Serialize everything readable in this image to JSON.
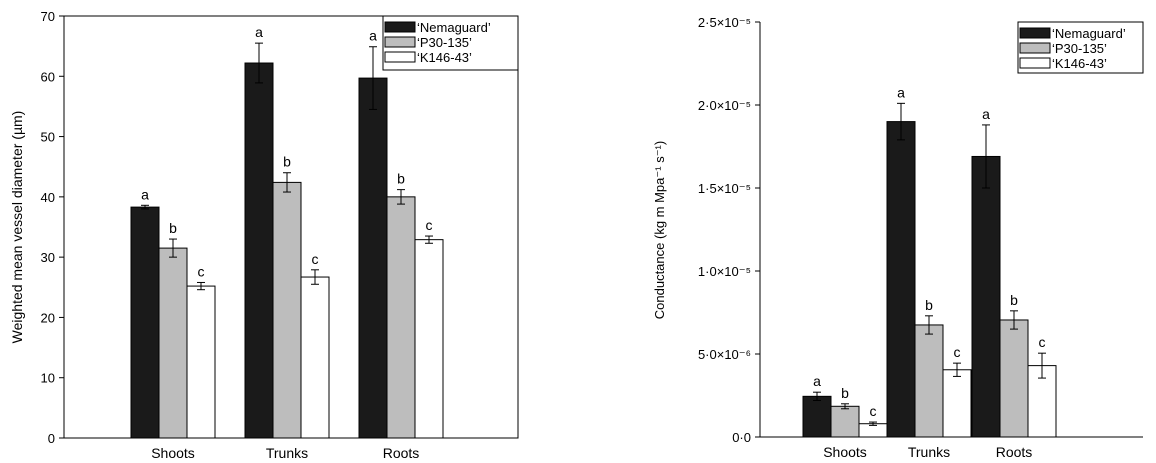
{
  "colors": {
    "black_bar": "#1a1a1a",
    "gray_bar": "#bdbdbd",
    "white_bar": "#ffffff",
    "axis": "#000000"
  },
  "chart_data": [
    {
      "type": "bar",
      "title": "",
      "categories": [
        "Shoots",
        "Trunks",
        "Roots"
      ],
      "ylabel": "Weighted mean vessel diameter (µm)",
      "xlabel": "",
      "ylim": [
        0,
        70
      ],
      "yticks": [
        0,
        10,
        20,
        30,
        40,
        50,
        60,
        70
      ],
      "ytick_labels": [
        "0",
        "10",
        "20",
        "30",
        "40",
        "50",
        "60",
        "70"
      ],
      "legend": {
        "placement": "top-right",
        "entries": [
          "‘Nemaguard’",
          "‘P30-135’",
          "‘K146-43’"
        ]
      },
      "series": [
        {
          "name": "‘Nemaguard’",
          "color": "#1a1a1a",
          "values": [
            38.3,
            62.2,
            59.7
          ],
          "errors": [
            0.3,
            3.3,
            5.2
          ],
          "letters": [
            "a",
            "a",
            "a"
          ]
        },
        {
          "name": "‘P30-135’",
          "color": "#bdbdbd",
          "values": [
            31.5,
            42.4,
            40.0
          ],
          "errors": [
            1.5,
            1.6,
            1.2
          ],
          "letters": [
            "b",
            "b",
            "b"
          ]
        },
        {
          "name": "‘K146-43’",
          "color": "#ffffff",
          "values": [
            25.2,
            26.7,
            32.9
          ],
          "errors": [
            0.6,
            1.2,
            0.6
          ],
          "letters": [
            "c",
            "c",
            "c"
          ]
        }
      ]
    },
    {
      "type": "bar",
      "title": "",
      "categories": [
        "Shoots",
        "Trunks",
        "Roots"
      ],
      "ylabel": "Conductance (kg m Mpa⁻¹ s⁻¹)",
      "xlabel": "",
      "ylim": [
        0,
        2.5e-05
      ],
      "yticks": [
        0,
        5e-06,
        1e-05,
        1.5e-05,
        2e-05,
        2.5e-05
      ],
      "ytick_labels": [
        "0·0",
        "5·0×10⁻⁶",
        "1·0×10⁻⁵",
        "1·5×10⁻⁵",
        "2·0×10⁻⁵",
        "2·5×10⁻⁵"
      ],
      "legend": {
        "placement": "top-right",
        "entries": [
          "‘Nemaguard’",
          "‘P30-135’",
          "‘K146-43’"
        ]
      },
      "series": [
        {
          "name": "‘Nemaguard’",
          "color": "#1a1a1a",
          "values": [
            2.45e-06,
            1.9e-05,
            1.69e-05
          ],
          "errors": [
            2.5e-07,
            1.1e-06,
            1.9e-06
          ],
          "letters": [
            "a",
            "a",
            "a"
          ]
        },
        {
          "name": "‘P30-135’",
          "color": "#bdbdbd",
          "values": [
            1.85e-06,
            6.75e-06,
            7.05e-06
          ],
          "errors": [
            1.5e-07,
            5.5e-07,
            5.5e-07
          ],
          "letters": [
            "b",
            "b",
            "b"
          ]
        },
        {
          "name": "‘K146-43’",
          "color": "#ffffff",
          "values": [
            8e-07,
            4.05e-06,
            4.3e-06
          ],
          "errors": [
            1e-07,
            4e-07,
            7.5e-07
          ],
          "letters": [
            "c",
            "c",
            "c"
          ]
        }
      ]
    }
  ]
}
